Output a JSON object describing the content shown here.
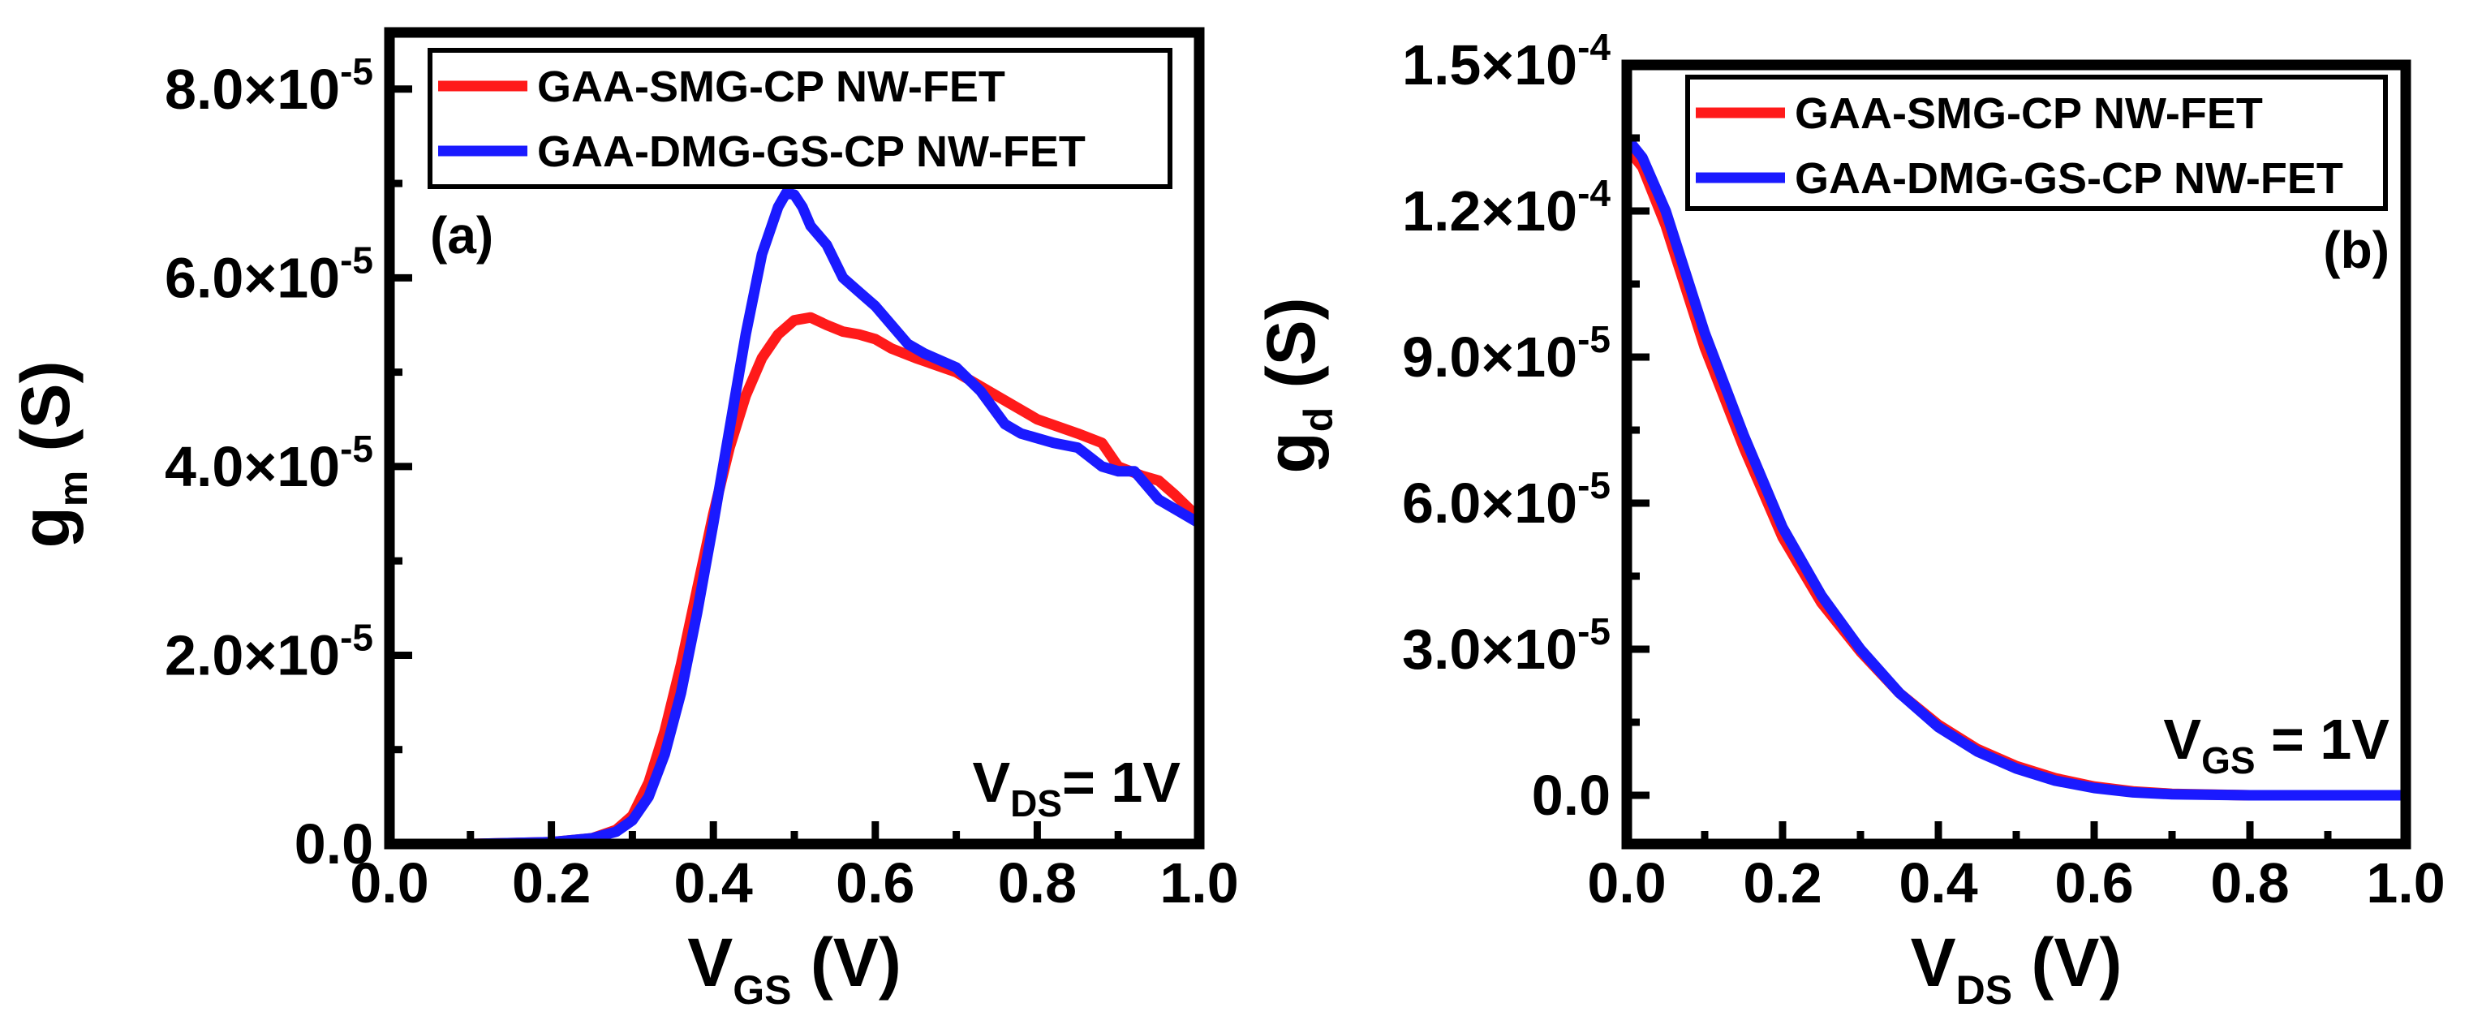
{
  "chart_data": [
    {
      "panel_label": "(a)",
      "type": "line",
      "xlabel": {
        "main": "V",
        "sub": "GS",
        "unit": " (V)"
      },
      "ylabel": {
        "main": "g",
        "sub": "m",
        "unit": " (S)"
      },
      "xlim": [
        0,
        1.0
      ],
      "ylim": [
        0,
        8.6e-05
      ],
      "x_ticks": [
        0.0,
        0.2,
        0.4,
        0.6,
        0.8,
        1.0
      ],
      "x_tick_labels": [
        "0.0",
        "0.2",
        "0.4",
        "0.6",
        "0.8",
        "1.0"
      ],
      "y_ticks": [
        0,
        2e-05,
        4e-05,
        6e-05,
        8e-05
      ],
      "y_tick_labels": [
        {
          "mant": "0.0",
          "exp": ""
        },
        {
          "mant": "2.0×10",
          "exp": "-5"
        },
        {
          "mant": "4.0×10",
          "exp": "-5"
        },
        {
          "mant": "6.0×10",
          "exp": "-5"
        },
        {
          "mant": "8.0×10",
          "exp": "-5"
        }
      ],
      "y_minor_ticks": [
        1e-05,
        3e-05,
        5e-05,
        7e-05
      ],
      "x_minor_ticks": [
        0.1,
        0.3,
        0.5,
        0.7,
        0.9
      ],
      "annotation": {
        "main": "V",
        "sub": "DS",
        "rest": "= 1V"
      },
      "legend_position": "top",
      "series": [
        {
          "name": "GAA-SMG-CP NW-FET",
          "color": "#ff1a1a",
          "x": [
            0.0,
            0.1,
            0.2,
            0.25,
            0.28,
            0.3,
            0.32,
            0.34,
            0.36,
            0.38,
            0.4,
            0.42,
            0.44,
            0.46,
            0.48,
            0.5,
            0.52,
            0.54,
            0.56,
            0.58,
            0.6,
            0.62,
            0.65,
            0.7,
            0.75,
            0.8,
            0.85,
            0.88,
            0.9,
            0.93,
            0.95,
            0.97,
            1.0
          ],
          "y": [
            0.0,
            0.0,
            2e-07,
            6e-07,
            1.5e-06,
            3e-06,
            6.5e-06,
            1.2e-05,
            1.9e-05,
            2.7e-05,
            3.5e-05,
            4.2e-05,
            4.75e-05,
            5.15e-05,
            5.4e-05,
            5.55e-05,
            5.58e-05,
            5.5e-05,
            5.43e-05,
            5.4e-05,
            5.35e-05,
            5.25e-05,
            5.15e-05,
            5e-05,
            4.75e-05,
            4.5e-05,
            4.35e-05,
            4.25e-05,
            4e-05,
            3.9e-05,
            3.85e-05,
            3.7e-05,
            3.45e-05
          ]
        },
        {
          "name": "GAA-DMG-GS-CP NW-FET",
          "color": "#1a1aff",
          "x": [
            0.0,
            0.1,
            0.2,
            0.25,
            0.28,
            0.3,
            0.32,
            0.34,
            0.36,
            0.38,
            0.4,
            0.42,
            0.44,
            0.46,
            0.48,
            0.49,
            0.5,
            0.51,
            0.52,
            0.54,
            0.56,
            0.58,
            0.6,
            0.62,
            0.64,
            0.66,
            0.7,
            0.73,
            0.76,
            0.78,
            0.82,
            0.85,
            0.88,
            0.9,
            0.92,
            0.95,
            1.0
          ],
          "y": [
            0.0,
            0.0,
            2e-07,
            6e-07,
            1.3e-06,
            2.5e-06,
            5e-06,
            9.5e-06,
            1.6e-05,
            2.45e-05,
            3.4e-05,
            4.4e-05,
            5.4e-05,
            6.25e-05,
            6.75e-05,
            6.9e-05,
            6.88e-05,
            6.75e-05,
            6.55e-05,
            6.35e-05,
            6e-05,
            5.85e-05,
            5.7e-05,
            5.5e-05,
            5.3e-05,
            5.2e-05,
            5.05e-05,
            4.8e-05,
            4.45e-05,
            4.35e-05,
            4.25e-05,
            4.2e-05,
            4e-05,
            3.95e-05,
            3.95e-05,
            3.65e-05,
            3.4e-05
          ]
        }
      ]
    },
    {
      "panel_label": "(b)",
      "type": "line",
      "xlabel": {
        "main": "V",
        "sub": "DS",
        "unit": " (V)"
      },
      "ylabel": {
        "main": "g",
        "sub": "d",
        "unit": " (S)"
      },
      "xlim": [
        0,
        1.0
      ],
      "ylim": [
        -1e-05,
        0.00015
      ],
      "x_ticks": [
        0.0,
        0.2,
        0.4,
        0.6,
        0.8,
        1.0
      ],
      "x_tick_labels": [
        "0.0",
        "0.2",
        "0.4",
        "0.6",
        "0.8",
        "1.0"
      ],
      "y_ticks": [
        0,
        3e-05,
        6e-05,
        9e-05,
        0.00012,
        0.00015
      ],
      "y_tick_labels": [
        {
          "mant": "0.0",
          "exp": ""
        },
        {
          "mant": "3.0×10",
          "exp": "-5"
        },
        {
          "mant": "6.0×10",
          "exp": "-5"
        },
        {
          "mant": "9.0×10",
          "exp": "-5"
        },
        {
          "mant": "1.2×10",
          "exp": "-4"
        },
        {
          "mant": "1.5×10",
          "exp": "-4"
        }
      ],
      "y_minor_ticks": [
        1.5e-05,
        4.5e-05,
        7.5e-05,
        0.000105,
        0.000135
      ],
      "x_minor_ticks": [
        0.1,
        0.3,
        0.5,
        0.7,
        0.9
      ],
      "annotation": {
        "main": "V",
        "sub": "GS",
        "rest": " = 1V"
      },
      "legend_position": "top",
      "series": [
        {
          "name": "GAA-SMG-CP NW-FET",
          "color": "#ff1a1a",
          "x": [
            0.0,
            0.02,
            0.05,
            0.08,
            0.1,
            0.15,
            0.2,
            0.25,
            0.3,
            0.35,
            0.4,
            0.45,
            0.5,
            0.55,
            0.6,
            0.65,
            0.7,
            0.8,
            0.9,
            1.0
          ],
          "y": [
            0.000133,
            0.000129,
            0.000117,
            0.000102,
            9.2e-05,
            7.15e-05,
            5.3e-05,
            3.95e-05,
            2.95e-05,
            2.1e-05,
            1.45e-05,
            9.5e-06,
            6e-06,
            3.5e-06,
            1.8e-06,
            8e-07,
            3e-07,
            0.0,
            0.0,
            0.0
          ]
        },
        {
          "name": "GAA-DMG-GS-CP NW-FET",
          "color": "#1a1aff",
          "x": [
            0.0,
            0.02,
            0.05,
            0.08,
            0.1,
            0.15,
            0.2,
            0.25,
            0.3,
            0.35,
            0.4,
            0.45,
            0.5,
            0.55,
            0.6,
            0.65,
            0.7,
            0.8,
            0.9,
            1.0
          ],
          "y": [
            0.000135,
            0.000131,
            0.00012,
            0.000105,
            9.5e-05,
            7.4e-05,
            5.5e-05,
            4.1e-05,
            3e-05,
            2.1e-05,
            1.4e-05,
            9e-06,
            5.5e-06,
            3e-06,
            1.5e-06,
            6e-07,
            2e-07,
            0.0,
            0.0,
            0.0
          ]
        }
      ]
    }
  ]
}
